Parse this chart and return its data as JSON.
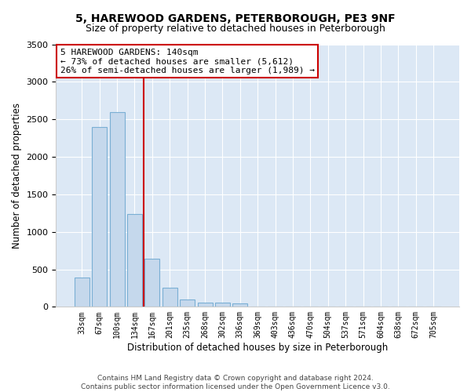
{
  "title": "5, HAREWOOD GARDENS, PETERBOROUGH, PE3 9NF",
  "subtitle": "Size of property relative to detached houses in Peterborough",
  "xlabel": "Distribution of detached houses by size in Peterborough",
  "ylabel": "Number of detached properties",
  "categories": [
    "33sqm",
    "67sqm",
    "100sqm",
    "134sqm",
    "167sqm",
    "201sqm",
    "235sqm",
    "268sqm",
    "302sqm",
    "336sqm",
    "369sqm",
    "403sqm",
    "436sqm",
    "470sqm",
    "504sqm",
    "537sqm",
    "571sqm",
    "604sqm",
    "638sqm",
    "672sqm",
    "705sqm"
  ],
  "values": [
    390,
    2400,
    2600,
    1240,
    640,
    255,
    100,
    60,
    55,
    45,
    0,
    0,
    0,
    0,
    0,
    0,
    0,
    0,
    0,
    0,
    0
  ],
  "bar_color": "#c5d8ec",
  "bar_edge_color": "#7aafd4",
  "vline_after_bar": 3,
  "vline_color": "#cc0000",
  "annotation_line1": "5 HAREWOOD GARDENS: 140sqm",
  "annotation_line2": "← 73% of detached houses are smaller (5,612)",
  "annotation_line3": "26% of semi-detached houses are larger (1,989) →",
  "annotation_box_facecolor": "#ffffff",
  "annotation_box_edgecolor": "#cc0000",
  "ylim_max": 3500,
  "yticks": [
    0,
    500,
    1000,
    1500,
    2000,
    2500,
    3000,
    3500
  ],
  "bg_color": "#dce8f5",
  "grid_color": "#ffffff",
  "footer_line1": "Contains HM Land Registry data © Crown copyright and database right 2024.",
  "footer_line2": "Contains public sector information licensed under the Open Government Licence v3.0."
}
